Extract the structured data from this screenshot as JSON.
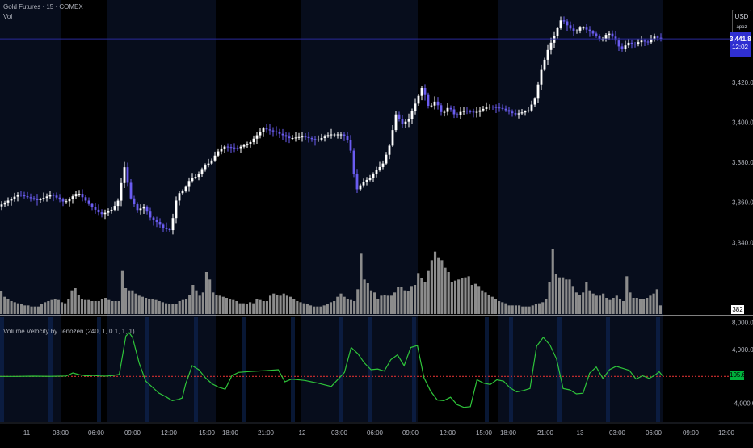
{
  "header": {
    "symbol_title": "Gold Futures · 15 · COMEX",
    "volume_label": "Vol",
    "currency": "USD",
    "currency_sub": "apoz"
  },
  "price_tag": {
    "price": "3,441.8",
    "countdown": "12:02",
    "color": "#2f2fd1"
  },
  "volume_tag": {
    "value": "382"
  },
  "oscillator_tag": {
    "value": "105.6",
    "color": "#00b33c"
  },
  "indicator": {
    "title": "Volume Velocity by Tenozen (240, 1, 0.1, 1, 1)"
  },
  "colors": {
    "background": "#000000",
    "session_band": "#070d1c",
    "candle_up": "#ffffff",
    "candle_down": "#6a5cf0",
    "volume": "#8c8c8c",
    "oscillator_line": "#2ec43a",
    "zero_line": "#d32f2f",
    "session_marker": "#0e2a5e",
    "price_line": "#2a2a9a"
  },
  "chart_data": [
    {
      "type": "candlestick",
      "title": "Gold Futures · 15 · COMEX",
      "y_axis_ticks": [
        3340,
        3360,
        3380,
        3400,
        3420
      ],
      "y_axis_tick_labels": [
        "3,340.0",
        "3,360.0",
        "3,380.0",
        "3,400.0",
        "3,420.0"
      ],
      "ylim": [
        3328,
        3458
      ],
      "last_price": 3441.8,
      "x_axis_labels": [
        "11",
        "03:00",
        "06:00",
        "09:00",
        "12:00",
        "15:00",
        "18:00",
        "21:00",
        "12",
        "03:00",
        "06:00",
        "09:00",
        "12:00",
        "15:00",
        "18:00",
        "21:00",
        "13",
        "03:00",
        "06:00",
        "09:00",
        "12:00"
      ],
      "price_path": [
        [
          0,
          3358
        ],
        [
          6,
          3364
        ],
        [
          12,
          3361
        ],
        [
          16,
          3364
        ],
        [
          20,
          3360
        ],
        [
          24,
          3365
        ],
        [
          28,
          3358
        ],
        [
          31,
          3354
        ],
        [
          34,
          3356
        ],
        [
          36,
          3360
        ],
        [
          38,
          3378
        ],
        [
          40,
          3362
        ],
        [
          42,
          3356
        ],
        [
          44,
          3358
        ],
        [
          46,
          3352
        ],
        [
          48,
          3350
        ],
        [
          50,
          3347
        ],
        [
          52,
          3346
        ],
        [
          54,
          3364
        ],
        [
          56,
          3366
        ],
        [
          58,
          3372
        ],
        [
          60,
          3373
        ],
        [
          62,
          3378
        ],
        [
          64,
          3380
        ],
        [
          66,
          3385
        ],
        [
          68,
          3388
        ],
        [
          72,
          3387
        ],
        [
          76,
          3390
        ],
        [
          80,
          3397
        ],
        [
          84,
          3395
        ],
        [
          88,
          3392
        ],
        [
          92,
          3393
        ],
        [
          96,
          3391
        ],
        [
          100,
          3394
        ],
        [
          104,
          3394
        ],
        [
          106,
          3390
        ],
        [
          108,
          3366
        ],
        [
          110,
          3370
        ],
        [
          112,
          3372
        ],
        [
          114,
          3376
        ],
        [
          116,
          3379
        ],
        [
          118,
          3388
        ],
        [
          120,
          3404
        ],
        [
          122,
          3399
        ],
        [
          124,
          3402
        ],
        [
          126,
          3410
        ],
        [
          128,
          3418
        ],
        [
          130,
          3407
        ],
        [
          132,
          3411
        ],
        [
          134,
          3404
        ],
        [
          136,
          3408
        ],
        [
          138,
          3403
        ],
        [
          140,
          3406
        ],
        [
          144,
          3405
        ],
        [
          148,
          3408
        ],
        [
          152,
          3407
        ],
        [
          156,
          3404
        ],
        [
          160,
          3406
        ],
        [
          162,
          3412
        ],
        [
          164,
          3427
        ],
        [
          166,
          3437
        ],
        [
          168,
          3444
        ],
        [
          170,
          3452
        ],
        [
          172,
          3448
        ],
        [
          174,
          3445
        ],
        [
          176,
          3448
        ],
        [
          180,
          3444
        ],
        [
          182,
          3441
        ],
        [
          184,
          3445
        ],
        [
          186,
          3442
        ],
        [
          188,
          3436
        ],
        [
          190,
          3440
        ],
        [
          192,
          3439
        ],
        [
          194,
          3441
        ],
        [
          196,
          3440
        ],
        [
          198,
          3443
        ],
        [
          200,
          3441.8
        ]
      ],
      "volume_bars": [
        21,
        16,
        14,
        12,
        11,
        10,
        9,
        8,
        8,
        7,
        7,
        7,
        9,
        11,
        12,
        13,
        14,
        13,
        11,
        10,
        14,
        22,
        24,
        18,
        14,
        13,
        13,
        12,
        12,
        12,
        14,
        15,
        13,
        12,
        12,
        12,
        40,
        24,
        22,
        22,
        19,
        17,
        16,
        15,
        14,
        14,
        13,
        12,
        11,
        10,
        9,
        9,
        9,
        12,
        13,
        14,
        18,
        27,
        22,
        17,
        20,
        39,
        32,
        20,
        18,
        17,
        16,
        15,
        14,
        13,
        12,
        10,
        10,
        9,
        11,
        10,
        14,
        13,
        12,
        12,
        17,
        19,
        18,
        17,
        19,
        17,
        16,
        14,
        12,
        11,
        10,
        9,
        8,
        7,
        7,
        7,
        8,
        9,
        11,
        12,
        16,
        19,
        16,
        14,
        13,
        12,
        23,
        56,
        32,
        29,
        22,
        20,
        14,
        17,
        18,
        17,
        17,
        20,
        25,
        25,
        22,
        21,
        26,
        27,
        38,
        33,
        30,
        40,
        50,
        58,
        52,
        50,
        43,
        39,
        30,
        31,
        32,
        33,
        34,
        35,
        27,
        28,
        26,
        22,
        20,
        18,
        16,
        14,
        12,
        11,
        10,
        8,
        8,
        8,
        8,
        7,
        7,
        7,
        8,
        9,
        10,
        11,
        14,
        30,
        60,
        37,
        34,
        34,
        32,
        32,
        26,
        20,
        18,
        20,
        30,
        22,
        19,
        17,
        17,
        19,
        15,
        13,
        15,
        17,
        14,
        12,
        35,
        20,
        15,
        15,
        14,
        14,
        15,
        17,
        19,
        23,
        8
      ],
      "volume_ylim": [
        0,
        75
      ]
    },
    {
      "type": "line",
      "title": "Volume Velocity by Tenozen (240, 1, 0.1, 1, 1)",
      "y_axis_ticks": [
        -4000,
        4000,
        8000
      ],
      "y_axis_tick_labels": [
        "-4,000.0",
        "4,000.0",
        "8,000.0"
      ],
      "ylim": [
        -6800,
        8800
      ],
      "zero_line": 0,
      "last_value": 105.6,
      "series": [
        {
          "values": [
            [
              0,
              0
            ],
            [
              5,
              0
            ],
            [
              10,
              40
            ],
            [
              15,
              10
            ],
            [
              20,
              60
            ],
            [
              22,
              520
            ],
            [
              24,
              250
            ],
            [
              26,
              80
            ],
            [
              28,
              150
            ],
            [
              30,
              80
            ],
            [
              32,
              50
            ],
            [
              34,
              130
            ],
            [
              36,
              300
            ],
            [
              38,
              6000
            ],
            [
              39,
              6500
            ],
            [
              40,
              5800
            ],
            [
              42,
              2000
            ],
            [
              44,
              -700
            ],
            [
              46,
              -1600
            ],
            [
              48,
              -2500
            ],
            [
              50,
              -3000
            ],
            [
              52,
              -3600
            ],
            [
              54,
              -3400
            ],
            [
              55,
              -3200
            ],
            [
              56,
              -1200
            ],
            [
              58,
              1600
            ],
            [
              60,
              1000
            ],
            [
              62,
              -200
            ],
            [
              64,
              -1100
            ],
            [
              66,
              -1600
            ],
            [
              68,
              -1900
            ],
            [
              70,
              100
            ],
            [
              72,
              600
            ],
            [
              76,
              760
            ],
            [
              80,
              860
            ],
            [
              84,
              1000
            ],
            [
              86,
              -800
            ],
            [
              88,
              -400
            ],
            [
              92,
              -600
            ],
            [
              96,
              -1000
            ],
            [
              100,
              -1500
            ],
            [
              104,
              600
            ],
            [
              106,
              4300
            ],
            [
              108,
              3400
            ],
            [
              110,
              2000
            ],
            [
              112,
              1000
            ],
            [
              114,
              1100
            ],
            [
              116,
              800
            ],
            [
              118,
              2500
            ],
            [
              120,
              3200
            ],
            [
              122,
              1600
            ],
            [
              124,
              4300
            ],
            [
              126,
              4600
            ],
            [
              128,
              -200
            ],
            [
              130,
              -2200
            ],
            [
              132,
              -3500
            ],
            [
              134,
              -3600
            ],
            [
              136,
              -3100
            ],
            [
              138,
              -4200
            ],
            [
              140,
              -4600
            ],
            [
              142,
              -4500
            ],
            [
              144,
              -500
            ],
            [
              146,
              -1000
            ],
            [
              148,
              -1200
            ],
            [
              150,
              -500
            ],
            [
              152,
              -700
            ],
            [
              154,
              -1700
            ],
            [
              156,
              -2300
            ],
            [
              158,
              -2100
            ],
            [
              160,
              -1800
            ],
            [
              162,
              4500
            ],
            [
              164,
              5800
            ],
            [
              166,
              4700
            ],
            [
              168,
              2600
            ],
            [
              170,
              -1800
            ],
            [
              172,
              -2000
            ],
            [
              174,
              -2600
            ],
            [
              176,
              -2500
            ],
            [
              178,
              500
            ],
            [
              180,
              1400
            ],
            [
              182,
              -300
            ],
            [
              184,
              1000
            ],
            [
              186,
              1500
            ],
            [
              188,
              1200
            ],
            [
              190,
              900
            ],
            [
              192,
              -400
            ],
            [
              194,
              100
            ],
            [
              196,
              -300
            ],
            [
              198,
              300
            ],
            [
              199,
              700
            ],
            [
              200,
              105.6
            ]
          ]
        }
      ]
    }
  ]
}
